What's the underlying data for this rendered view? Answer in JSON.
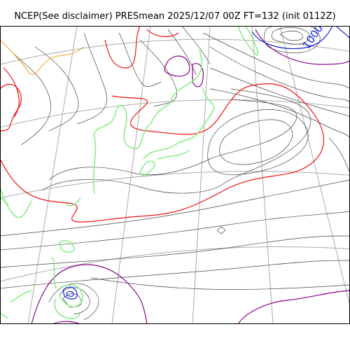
{
  "title": "NCEP(See disclaimer) PRESmean 2025/12/07 00Z FT=132 (init 0112Z)",
  "colors": {
    "coastline": "#88ee88",
    "isobar": "#444444",
    "isobar_red": "#ee1111",
    "isobar_purple": "#880088",
    "isobar_blue": "#1122dd",
    "isobar_orange": "#f0a020",
    "graticule": "#aaaaaa"
  },
  "labels": [
    {
      "text": "1000",
      "color": "#1122dd"
    }
  ]
}
